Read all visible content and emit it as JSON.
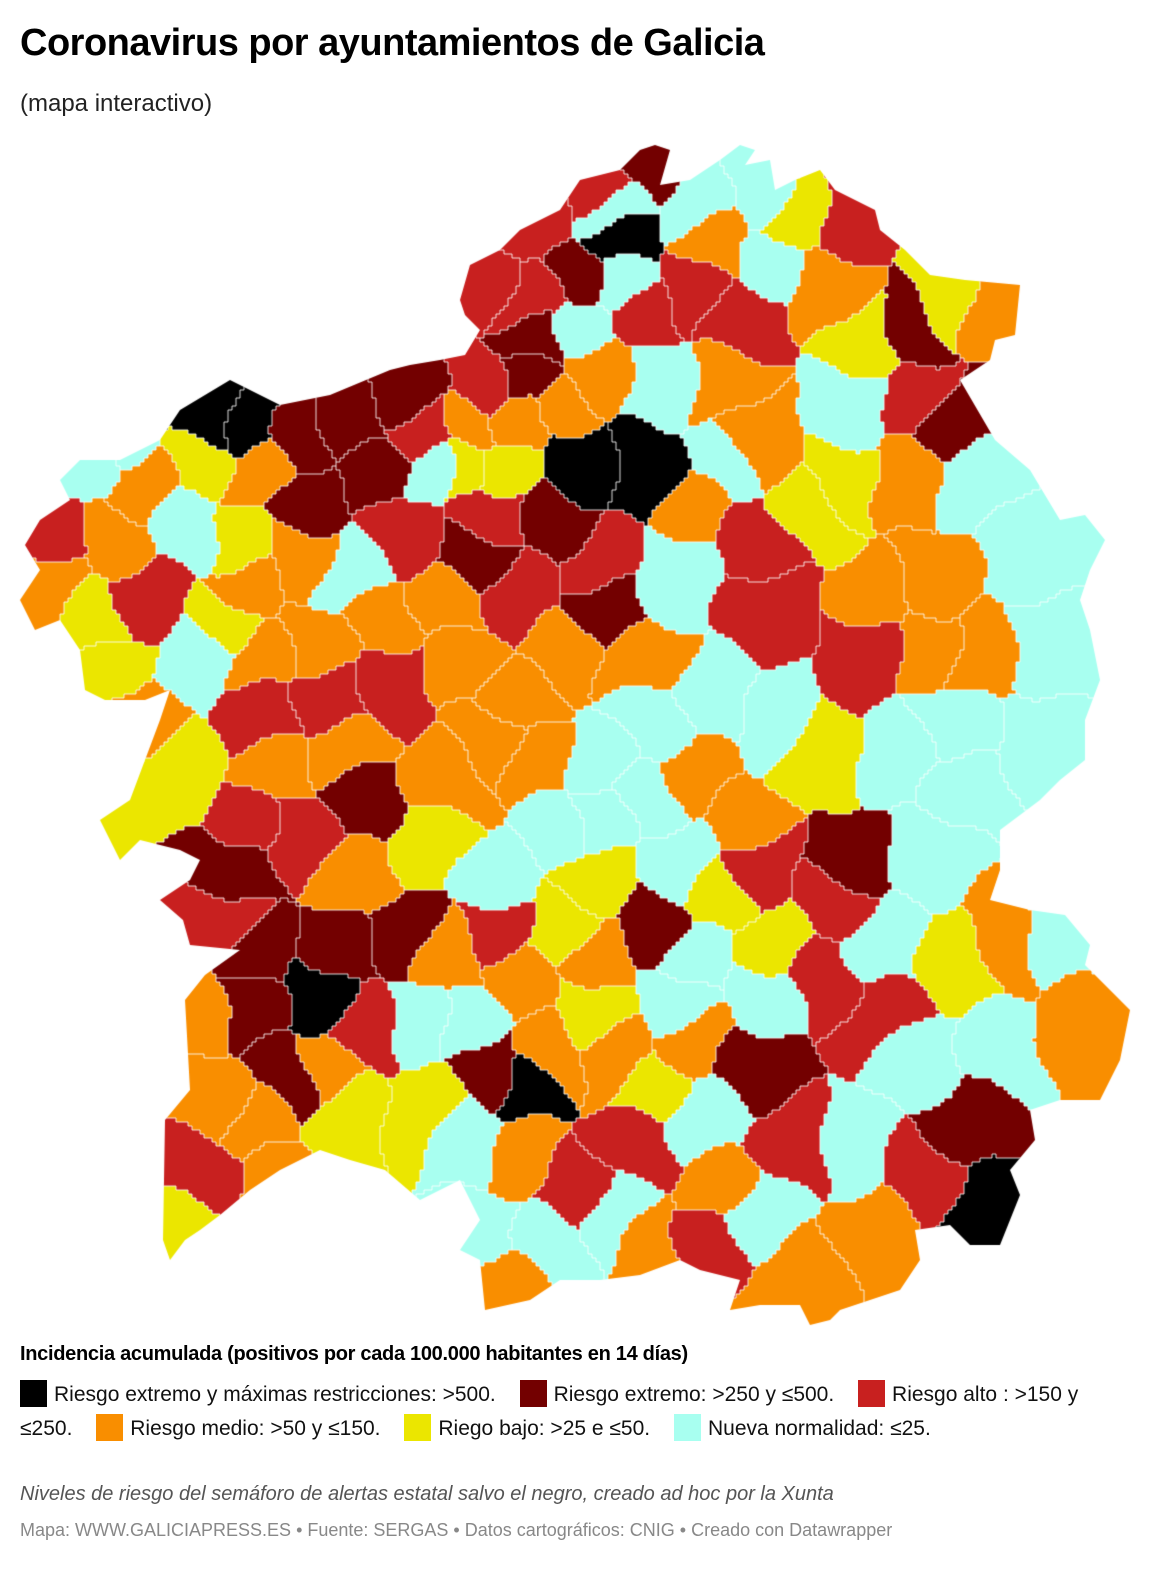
{
  "header": {
    "title": "Coronavirus por ayuntamientos de Galicia",
    "subtitle": "(mapa interactivo)"
  },
  "legend": {
    "title": "Incidencia acumulada (positivos por cada 100.000 habitantes en 14 días)",
    "items": [
      {
        "key": "k",
        "label": "Riesgo extremo y máximas restricciones: >500.",
        "color": "#000000"
      },
      {
        "key": "m",
        "label": "Riesgo extremo: >250 y ≤500.",
        "color": "#730000"
      },
      {
        "key": "r",
        "label": "Riesgo alto : >150 y ≤250.",
        "color": "#c8201f"
      },
      {
        "key": "o",
        "label": "Riesgo medio: >50 y ≤150.",
        "color": "#f98e00"
      },
      {
        "key": "y",
        "label": "Riego bajo: >25 e ≤50.",
        "color": "#ebe600"
      },
      {
        "key": "c",
        "label": "Nueva normalidad: ≤25.",
        "color": "#a8fff0"
      }
    ]
  },
  "footer": {
    "note": "Niveles de riesgo del semáforo de alertas estatal salvo el negro, creado ad hoc por la Xunta",
    "source": "Mapa: WWW.GALICIAPRESS.ES • Fuente: SERGAS • Datos cartográficos: CNIG • Creado con Datawrapper"
  },
  "chart_data": {
    "type": "choropleth",
    "region": "Galicia",
    "unit": "ayuntamientos",
    "colors": {
      "k": "#000000",
      "m": "#730000",
      "r": "#c8201f",
      "o": "#f98e00",
      "y": "#ebe600",
      "c": "#a8fff0"
    }
  }
}
